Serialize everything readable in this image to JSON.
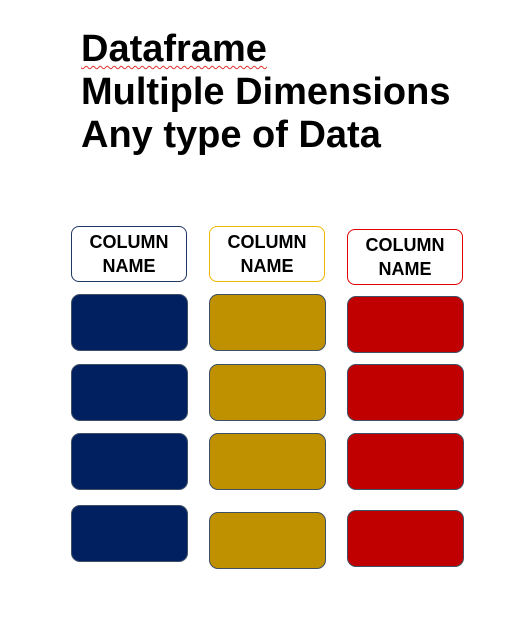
{
  "title": {
    "line1": "Dataframe",
    "line2": "Multiple Dimensions",
    "line3": "Any type of Data"
  },
  "columns": [
    {
      "header": "COLUMN NAME",
      "border_color": "#1f3864",
      "fill_color": "#002060",
      "cell_count": 4
    },
    {
      "header": "COLUMN NAME",
      "border_color": "#f0b800",
      "fill_color": "#bf9000",
      "cell_count": 4
    },
    {
      "header": "COLUMN NAME",
      "border_color": "#e00000",
      "fill_color": "#c00000",
      "cell_count": 4
    }
  ]
}
